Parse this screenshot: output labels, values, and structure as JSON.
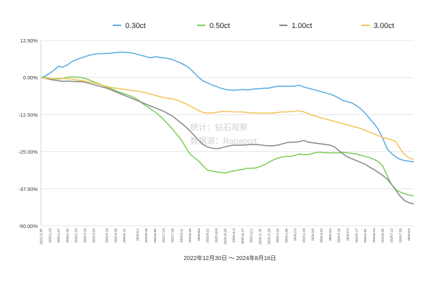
{
  "chart_data": {
    "type": "line",
    "title": "",
    "xlabel": "2022年12月30日 ～ 2024年8月16日",
    "ylabel": "",
    "ylim": [
      -50,
      12.5
    ],
    "yticks": [
      "12.50%",
      "0.00%",
      "-12.50%",
      "-25.00%",
      "-37.50%",
      "-50.00%"
    ],
    "ytick_values": [
      12.5,
      0,
      -12.5,
      -25,
      -37.5,
      -50
    ],
    "grid": "horizontal",
    "legend_placement": "top",
    "watermark": [
      "统计：钻石观察",
      "数据源：Rapaport"
    ],
    "x": [
      "2022.12.30",
      "2023.1.6",
      "2023.1.13",
      "2023.1.20",
      "2023.1.27",
      "2023.2.3",
      "2023.2.10",
      "2023.2.17",
      "2023.2.24",
      "2023.3.3",
      "2023.3.10",
      "2023.3.17",
      "2023.3.24",
      "2023.3.31",
      "2023.4.7",
      "2023.4.14",
      "2023.4.21",
      "2023.4.28",
      "2023.5.5",
      "2023.5.12",
      "2023.5.19",
      "2023.5.26",
      "2023.6.2",
      "2023.6.9",
      "2023.6.16",
      "2023.6.23",
      "2023.6.30",
      "2023.7.7",
      "2023.7.14",
      "2023.7.21",
      "2023.7.28",
      "2023.8.4",
      "2023.8.11",
      "2023.8.18",
      "2023.8.25",
      "2023.9.1",
      "2023.9.8",
      "2023.9.15",
      "2023.9.22",
      "2023.9.29",
      "2023.10.6",
      "2023.10.13",
      "2023.10.20",
      "2023.10.27",
      "2023.11.3",
      "2023.11.10",
      "2023.11.17",
      "2023.11.24",
      "2023.12.1",
      "2023.12.8",
      "2023.12.15",
      "2023.12.22",
      "2023.12.29",
      "2024.1.5",
      "2024.1.12",
      "2024.1.19",
      "2024.1.26",
      "2024.2.2",
      "2024.2.9",
      "2024.2.16",
      "2024.2.23",
      "2024.3.1",
      "2024.3.8",
      "2024.3.15",
      "2024.3.22",
      "2024.3.29",
      "2024.4.5",
      "2024.4.12",
      "2024.4.19",
      "2024.4.26",
      "2024.5.3",
      "2024.5.10",
      "2024.5.17",
      "2024.5.24",
      "2024.5.31",
      "2024.6.7",
      "2024.6.14",
      "2024.6.21",
      "2024.6.28",
      "2024.7.5",
      "2024.7.12",
      "2024.7.19",
      "2024.7.26",
      "2024.8.2",
      "2024.8.9",
      "2024.8.16"
    ],
    "tick_labels": [
      "2022.12.30",
      "2023.1.13",
      "2023.1.27",
      "2023.2.10",
      "2023.2.24",
      "2023.3.10",
      "2023.3.24",
      "2023.4.14",
      "2023.4.28",
      "2023.5.12",
      "2023.6.2",
      "2023.6.16",
      "2023.6.30",
      "2023.7.14",
      "2023.7.28",
      "2023.8.11",
      "2023.8.25",
      "2023.9.8",
      "2023.9.22",
      "2023.10.6",
      "2023.10.20",
      "2023.11.3",
      "2023.11.17",
      "2023.12.1",
      "2023.12.15",
      "2023.12.29",
      "2024.1.12",
      "2024.1.26",
      "2024.2.9",
      "2024.2.23",
      "2024.3.8",
      "2024.3.22",
      "2024.4.5",
      "2024.4.19",
      "2024.5.3",
      "2024.5.17",
      "2024.5.31",
      "2024.6.14",
      "2024.6.28",
      "2024.7.12",
      "2024.7.26",
      "2024.8.9"
    ],
    "series": [
      {
        "name": "0.30ct",
        "color": "#5aaee0",
        "values": [
          0,
          0.5,
          1.5,
          2.5,
          3.8,
          3.5,
          4.2,
          5.3,
          6.0,
          6.5,
          7.0,
          7.5,
          7.8,
          8.0,
          8.0,
          8.1,
          8.2,
          8.4,
          8.5,
          8.5,
          8.4,
          8.2,
          7.8,
          7.4,
          7.0,
          6.6,
          7.0,
          6.8,
          6.6,
          6.4,
          6.0,
          5.4,
          4.8,
          4.0,
          3.0,
          1.5,
          0.0,
          -1.2,
          -1.8,
          -2.5,
          -3.0,
          -3.6,
          -4.0,
          -4.2,
          -4.3,
          -4.2,
          -4.0,
          -4.2,
          -4.0,
          -3.8,
          -3.8,
          -3.6,
          -3.6,
          -3.2,
          -3.0,
          -2.9,
          -3.0,
          -3.0,
          -2.9,
          -2.6,
          -3.2,
          -3.6,
          -4.0,
          -4.4,
          -4.8,
          -5.2,
          -5.6,
          -6.2,
          -7.0,
          -7.8,
          -8.2,
          -8.6,
          -9.5,
          -10.6,
          -12.0,
          -13.8,
          -15.5,
          -17.5,
          -20.5,
          -24.0,
          -25.6,
          -26.8,
          -27.6,
          -28.0,
          -28.2,
          -28.4
        ]
      },
      {
        "name": "0.50ct",
        "color": "#7dcf5a",
        "values": [
          0,
          0,
          -0.3,
          -0.5,
          -0.5,
          -0.3,
          0.1,
          0.2,
          0.1,
          0.0,
          -0.3,
          -0.8,
          -1.5,
          -2.0,
          -2.6,
          -3.2,
          -3.8,
          -4.4,
          -5.0,
          -5.5,
          -6.0,
          -6.6,
          -7.4,
          -8.6,
          -9.6,
          -10.6,
          -11.6,
          -12.8,
          -14.2,
          -15.8,
          -17.4,
          -19.2,
          -21.0,
          -23.5,
          -25.8,
          -27.0,
          -28.2,
          -29.8,
          -31.2,
          -31.5,
          -31.8,
          -32.0,
          -32.2,
          -31.8,
          -31.5,
          -31.2,
          -31.0,
          -30.6,
          -30.6,
          -30.5,
          -30.0,
          -29.4,
          -28.6,
          -27.8,
          -27.2,
          -26.8,
          -26.6,
          -26.6,
          -26.2,
          -25.8,
          -26.0,
          -26.0,
          -25.6,
          -25.2,
          -25.2,
          -25.4,
          -25.4,
          -25.4,
          -25.4,
          -25.2,
          -25.4,
          -25.6,
          -25.8,
          -26.2,
          -26.6,
          -27.0,
          -27.6,
          -28.4,
          -29.8,
          -33.0,
          -36.0,
          -37.8,
          -38.6,
          -39.2,
          -39.6,
          -39.8
        ]
      },
      {
        "name": "1.00ct",
        "color": "#8a8a8a",
        "values": [
          0,
          -0.3,
          -0.6,
          -0.9,
          -1.1,
          -1.3,
          -1.2,
          -1.3,
          -1.4,
          -1.4,
          -1.6,
          -2.0,
          -2.4,
          -2.8,
          -3.2,
          -3.6,
          -4.2,
          -4.8,
          -5.4,
          -6.0,
          -6.6,
          -7.2,
          -7.8,
          -8.4,
          -9.0,
          -9.6,
          -10.2,
          -10.8,
          -11.4,
          -12.2,
          -13.0,
          -14.2,
          -15.4,
          -16.6,
          -18.0,
          -19.6,
          -21.2,
          -22.6,
          -23.4,
          -23.8,
          -24.0,
          -23.8,
          -23.4,
          -23.0,
          -22.8,
          -22.8,
          -22.8,
          -22.7,
          -22.6,
          -22.6,
          -22.7,
          -22.9,
          -23.0,
          -23.0,
          -22.8,
          -22.4,
          -22.0,
          -21.8,
          -21.8,
          -21.6,
          -21.2,
          -21.8,
          -22.0,
          -22.2,
          -22.4,
          -22.6,
          -22.8,
          -23.4,
          -24.6,
          -25.8,
          -26.8,
          -27.4,
          -28.0,
          -28.6,
          -29.2,
          -30.2,
          -31.0,
          -32.0,
          -33.0,
          -34.2,
          -36.0,
          -38.0,
          -40.0,
          -41.5,
          -42.2,
          -42.6
        ]
      },
      {
        "name": "3.00ct",
        "color": "#f2c45a",
        "values": [
          0,
          -0.2,
          -0.3,
          -0.4,
          -0.3,
          -0.3,
          -0.4,
          -0.5,
          -0.8,
          -1.0,
          -1.2,
          -1.5,
          -1.8,
          -2.2,
          -2.6,
          -3.0,
          -3.4,
          -3.6,
          -3.8,
          -4.0,
          -4.2,
          -4.4,
          -4.6,
          -4.8,
          -5.2,
          -5.6,
          -6.0,
          -6.4,
          -6.8,
          -7.0,
          -7.2,
          -7.6,
          -8.2,
          -8.8,
          -9.6,
          -10.4,
          -11.2,
          -11.8,
          -12.0,
          -12.0,
          -11.8,
          -11.5,
          -11.4,
          -11.5,
          -11.6,
          -11.6,
          -11.6,
          -11.8,
          -11.9,
          -12.0,
          -12.0,
          -12.0,
          -12.0,
          -12.0,
          -11.8,
          -11.6,
          -11.6,
          -11.5,
          -11.4,
          -11.2,
          -11.6,
          -12.2,
          -12.8,
          -13.2,
          -13.6,
          -14.0,
          -14.4,
          -14.8,
          -15.2,
          -15.6,
          -16.0,
          -16.4,
          -16.8,
          -17.2,
          -17.8,
          -18.4,
          -19.0,
          -19.6,
          -20.2,
          -20.6,
          -21.0,
          -21.6,
          -24.0,
          -26.0,
          -27.0,
          -27.6
        ]
      }
    ]
  }
}
